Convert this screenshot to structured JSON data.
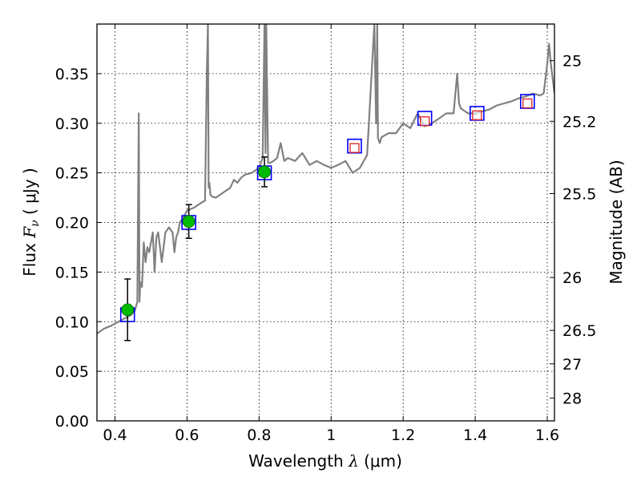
{
  "chart_data": {
    "type": "scatter",
    "xlabel": {
      "prefix": "Wavelength  ",
      "symbol": "λ",
      "unit": " (μm)"
    },
    "ylabel": {
      "prefix": "Flux  ",
      "symbol_main": "F",
      "symbol_sub": "ν",
      "unit": "  ( μJy )"
    },
    "y2label": "Magnitude (AB)",
    "xlim": [
      0.35,
      1.62
    ],
    "ylim": [
      0.0,
      0.4
    ],
    "x_ticks": [
      0.4,
      0.6,
      0.8,
      1.0,
      1.2,
      1.4,
      1.6
    ],
    "x_tick_labels": [
      "0.4",
      "0.6",
      "0.8",
      "1",
      "1.2",
      "1.4",
      "1.6"
    ],
    "y_ticks": [
      0.0,
      0.05,
      0.1,
      0.15,
      0.2,
      0.25,
      0.3,
      0.35
    ],
    "y_tick_labels": [
      "0.00",
      "0.05",
      "0.10",
      "0.15",
      "0.20",
      "0.25",
      "0.30",
      "0.35"
    ],
    "y2_ticks": [
      25,
      25.2,
      25.5,
      26,
      26.5,
      27,
      28
    ],
    "y2_tick_labels": [
      "25",
      "25.2",
      "25.5",
      "26",
      "26.5",
      "27",
      "28"
    ],
    "grid": true,
    "colors": {
      "model": "#808080",
      "observed_fill": "#00bb00",
      "model_box": "#0000ff",
      "upper_box": "#dd2222",
      "errorbar": "#000000"
    },
    "series": [
      {
        "kind": "model-spectrum-line",
        "x": [
          0.35,
          0.37,
          0.39,
          0.41,
          0.43,
          0.445,
          0.455,
          0.462,
          0.466,
          0.468,
          0.47,
          0.475,
          0.48,
          0.485,
          0.49,
          0.495,
          0.5,
          0.505,
          0.51,
          0.515,
          0.52,
          0.525,
          0.53,
          0.54,
          0.55,
          0.56,
          0.565,
          0.57,
          0.575,
          0.58,
          0.59,
          0.6,
          0.62,
          0.64,
          0.65,
          0.655,
          0.658,
          0.66,
          0.662,
          0.665,
          0.67,
          0.68,
          0.7,
          0.72,
          0.73,
          0.74,
          0.75,
          0.76,
          0.78,
          0.8,
          0.81,
          0.815,
          0.818,
          0.82,
          0.825,
          0.83,
          0.84,
          0.85,
          0.86,
          0.87,
          0.88,
          0.9,
          0.92,
          0.94,
          0.96,
          0.98,
          1.0,
          1.02,
          1.04,
          1.06,
          1.08,
          1.1,
          1.12,
          1.125,
          1.128,
          1.13,
          1.135,
          1.14,
          1.16,
          1.18,
          1.2,
          1.22,
          1.24,
          1.26,
          1.28,
          1.3,
          1.32,
          1.34,
          1.35,
          1.355,
          1.36,
          1.38,
          1.4,
          1.42,
          1.44,
          1.46,
          1.48,
          1.5,
          1.52,
          1.54,
          1.56,
          1.58,
          1.59,
          1.6,
          1.605,
          1.61,
          1.62
        ],
        "y": [
          0.088,
          0.093,
          0.096,
          0.1,
          0.104,
          0.107,
          0.111,
          0.12,
          0.31,
          0.12,
          0.14,
          0.135,
          0.18,
          0.16,
          0.175,
          0.17,
          0.18,
          0.19,
          0.15,
          0.185,
          0.19,
          0.175,
          0.16,
          0.19,
          0.195,
          0.19,
          0.17,
          0.185,
          0.19,
          0.2,
          0.205,
          0.212,
          0.215,
          0.22,
          0.222,
          0.35,
          0.4,
          0.235,
          0.24,
          0.228,
          0.226,
          0.225,
          0.23,
          0.235,
          0.243,
          0.24,
          0.245,
          0.248,
          0.25,
          0.255,
          0.265,
          0.4,
          0.27,
          0.4,
          0.26,
          0.26,
          0.262,
          0.265,
          0.28,
          0.262,
          0.265,
          0.262,
          0.27,
          0.258,
          0.262,
          0.258,
          0.255,
          0.258,
          0.262,
          0.25,
          0.255,
          0.268,
          0.4,
          0.3,
          0.4,
          0.285,
          0.28,
          0.286,
          0.29,
          0.29,
          0.3,
          0.295,
          0.31,
          0.297,
          0.3,
          0.305,
          0.31,
          0.31,
          0.35,
          0.32,
          0.315,
          0.31,
          0.31,
          0.312,
          0.314,
          0.318,
          0.32,
          0.322,
          0.325,
          0.327,
          0.33,
          0.328,
          0.33,
          0.36,
          0.38,
          0.36,
          0.33
        ]
      },
      {
        "kind": "model-photometry-boxes",
        "x": [
          0.435,
          0.605,
          0.815,
          1.065,
          1.26,
          1.405,
          1.545
        ],
        "y": [
          0.107,
          0.2,
          0.25,
          0.277,
          0.305,
          0.31,
          0.322
        ]
      },
      {
        "kind": "observed-detections",
        "x": [
          0.435,
          0.605,
          0.815
        ],
        "y": [
          0.112,
          0.201,
          0.251
        ],
        "yerr": [
          0.031,
          0.017,
          0.015
        ]
      },
      {
        "kind": "non-detection-boxes",
        "x": [
          1.065,
          1.26,
          1.405,
          1.545
        ],
        "y": [
          0.275,
          0.302,
          0.308,
          0.32
        ]
      }
    ]
  }
}
